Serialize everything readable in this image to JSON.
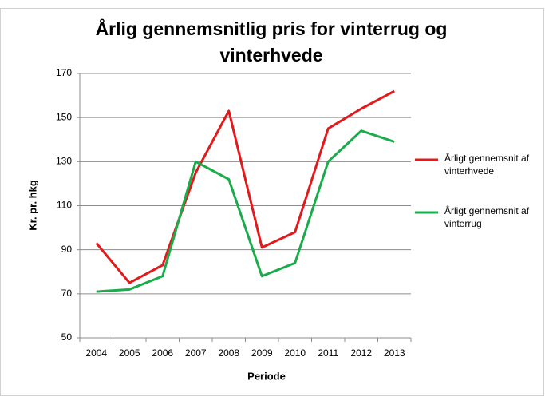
{
  "chart_data": {
    "type": "line",
    "title": "Årlig gennemsnitlig pris for vinterrug og vinterhvede",
    "x_label": "Periode",
    "y_label": "Kr. pr. hkg",
    "categories": [
      "2004",
      "2005",
      "2006",
      "2007",
      "2008",
      "2009",
      "2010",
      "2011",
      "2012",
      "2013"
    ],
    "series": [
      {
        "name": "Årligt gennemsnit af vinterhvede",
        "color": "#e31a1c",
        "values": [
          93,
          75,
          83,
          125,
          153,
          91,
          98,
          145,
          154,
          162
        ]
      },
      {
        "name": "Årligt gennemsnit af vinterrug",
        "color": "#1aab4a",
        "values": [
          71,
          72,
          78,
          130,
          122,
          78,
          84,
          130,
          144,
          139
        ]
      }
    ],
    "ylim": [
      50,
      170
    ],
    "yticks": [
      50,
      70,
      90,
      110,
      130,
      150,
      170
    ],
    "grid": true,
    "legend": "right"
  }
}
